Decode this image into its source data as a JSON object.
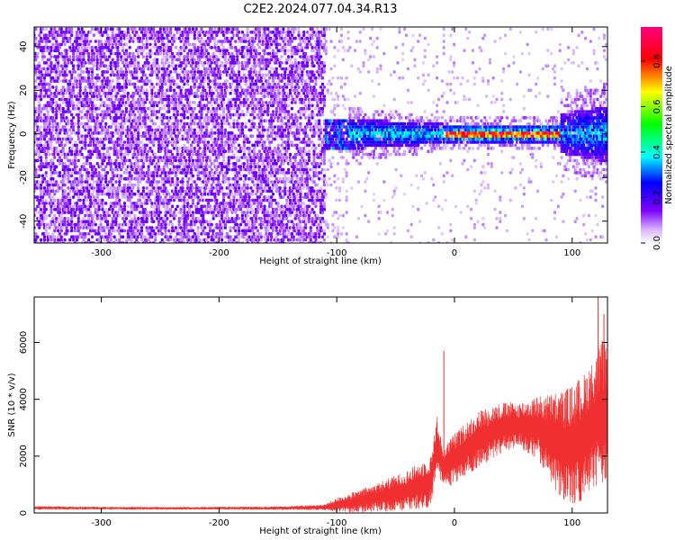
{
  "title": "C2E2.2024.077.04.34.R13",
  "chart_data": [
    {
      "type": "heatmap",
      "xlabel": "Height of straight line (km)",
      "ylabel": "Frequency (Hz)",
      "xlim": [
        -357,
        130
      ],
      "ylim": [
        -50,
        49
      ],
      "xticks": [
        -300,
        -200,
        -100,
        0,
        100
      ],
      "yticks": [
        -40,
        -20,
        0,
        20,
        40
      ],
      "colorbar": {
        "label": "Normalized spectral amplitude",
        "range": [
          0,
          0.95
        ],
        "ticks": [
          0.0,
          0.2,
          0.4,
          0.6,
          0.8
        ],
        "colors": [
          "#ffffff",
          "#7f00ff",
          "#0000ff",
          "#00ffff",
          "#00ff00",
          "#ffff00",
          "#ff0000",
          "#ff0080"
        ]
      },
      "regions": [
        {
          "x_range": [
            -357,
            -110
          ],
          "f_range": [
            -50,
            49
          ],
          "amplitude": "0.05-0.15",
          "description": "broadband noise"
        },
        {
          "x_range": [
            -110,
            -10
          ],
          "f_range": [
            -7,
            7
          ],
          "amplitude": "0.1-0.45"
        },
        {
          "x_range": [
            -10,
            90
          ],
          "f_range": [
            -4,
            4
          ],
          "amplitude": "0.3-0.9",
          "peak_f": 0
        },
        {
          "x_range": [
            90,
            130
          ],
          "f_range": [
            -10,
            10
          ],
          "amplitude": "0.1-0.4"
        }
      ]
    },
    {
      "type": "line",
      "xlabel": "Height of straight line (km)",
      "ylabel": "SNR (10 * v/v)",
      "xlim": [
        -357,
        130
      ],
      "ylim": [
        0,
        7600
      ],
      "xticks": [
        -300,
        -200,
        -100,
        0,
        100
      ],
      "yticks": [
        0,
        2000,
        4000,
        6000
      ],
      "color": "#f03030",
      "series": [
        {
          "x": [
            -357,
            -300,
            -250,
            -200,
            -150,
            -110,
            -100,
            -80,
            -60,
            -40,
            -20,
            -15,
            -10,
            0,
            20,
            40,
            55,
            70,
            80,
            90,
            100,
            110,
            120,
            125,
            130
          ],
          "y": [
            180,
            170,
            165,
            170,
            170,
            200,
            280,
            420,
            600,
            800,
            1100,
            2500,
            1600,
            1900,
            2600,
            3000,
            3100,
            3000,
            2700,
            2400,
            2300,
            2700,
            3200,
            3400,
            3500
          ],
          "spread": [
            60,
            50,
            50,
            50,
            60,
            100,
            250,
            400,
            550,
            700,
            900,
            1000,
            700,
            900,
            1000,
            900,
            800,
            1100,
            1500,
            1900,
            2200,
            2200,
            2300,
            2700,
            2400
          ]
        }
      ],
      "peaks": [
        {
          "x": -9,
          "y": 5700
        },
        {
          "x": 122,
          "y": 7600
        },
        {
          "x": 127,
          "y": 7000
        }
      ]
    }
  ]
}
